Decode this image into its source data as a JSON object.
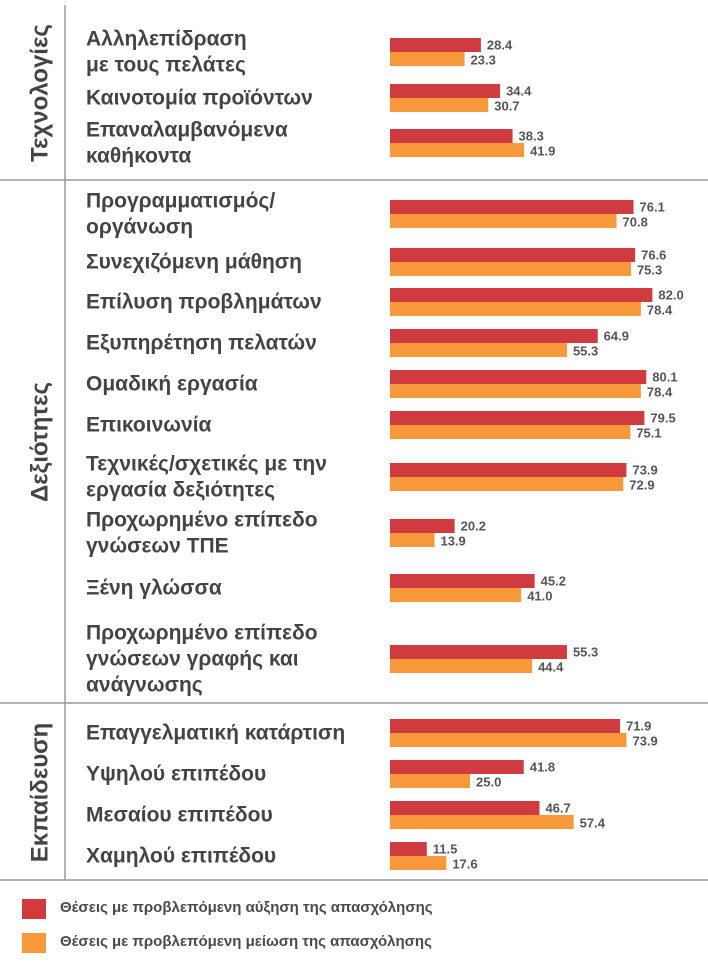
{
  "chart_data": {
    "type": "bar",
    "orientation": "horizontal",
    "groups": [
      {
        "name": "Τεχνολογίες",
        "categories": [
          {
            "label": [
              "Αλληλεπίδραση",
              "με τους πελάτες"
            ],
            "increase": 28.4,
            "decrease": 23.3
          },
          {
            "label": [
              "Καινοτομία προϊόντων"
            ],
            "increase": 34.4,
            "decrease": 30.7
          },
          {
            "label": [
              "Επαναλαμβανόμενα",
              "καθήκοντα"
            ],
            "increase": 38.3,
            "decrease": 41.9
          }
        ]
      },
      {
        "name": "Δεξιότητες",
        "categories": [
          {
            "label": [
              "Προγραμματισμός/",
              "οργάνωση"
            ],
            "increase": 76.1,
            "decrease": 70.8
          },
          {
            "label": [
              "Συνεχιζόμενη μάθηση"
            ],
            "increase": 76.6,
            "decrease": 75.3
          },
          {
            "label": [
              "Επίλυση προβλημάτων"
            ],
            "increase": 82.0,
            "decrease": 78.4
          },
          {
            "label": [
              "Εξυπηρέτηση πελατών"
            ],
            "increase": 64.9,
            "decrease": 55.3
          },
          {
            "label": [
              "Ομαδική εργασία"
            ],
            "increase": 80.1,
            "decrease": 78.4
          },
          {
            "label": [
              "Επικοινωνία"
            ],
            "increase": 79.5,
            "decrease": 75.1
          },
          {
            "label": [
              "Τεχνικές/σχετικές με την",
              "εργασία δεξιότητες"
            ],
            "increase": 73.9,
            "decrease": 72.9
          },
          {
            "label": [
              "Προχωρημένο επίπεδο",
              "γνώσεων ΤΠΕ"
            ],
            "increase": 20.2,
            "decrease": 13.9
          },
          {
            "label": [
              "Ξένη γλώσσα"
            ],
            "increase": 45.2,
            "decrease": 41.0
          },
          {
            "label": [
              "Προχωρημένο επίπεδο",
              "γνώσεων γραφής και",
              "ανάγνωσης"
            ],
            "increase": 55.3,
            "decrease": 44.4
          }
        ]
      },
      {
        "name": "Εκπαίδευση",
        "categories": [
          {
            "label": [
              "Επαγγελματική κατάρτιση"
            ],
            "increase": 71.9,
            "decrease": 73.9
          },
          {
            "label": [
              "Υψηλού επιπέδου"
            ],
            "increase": 41.8,
            "decrease": 25.0
          },
          {
            "label": [
              "Μεσαίου επιπέδου"
            ],
            "increase": 46.7,
            "decrease": 57.4
          },
          {
            "label": [
              "Χαμηλού επιπέδου"
            ],
            "increase": 11.5,
            "decrease": 17.6
          }
        ]
      }
    ],
    "series": [
      {
        "key": "increase",
        "name": "Θέσεις με προβλεπόμενη αύξηση της απασχόλησης",
        "color": "#cf3b3f"
      },
      {
        "key": "decrease",
        "name": "Θέσεις με προβλεπόμενη μείωση της απασχόλησης",
        "color": "#f7993b"
      }
    ],
    "xlim": [
      0,
      100
    ],
    "value_decimals": 1,
    "grid": false,
    "legend_position": "bottom-left"
  }
}
